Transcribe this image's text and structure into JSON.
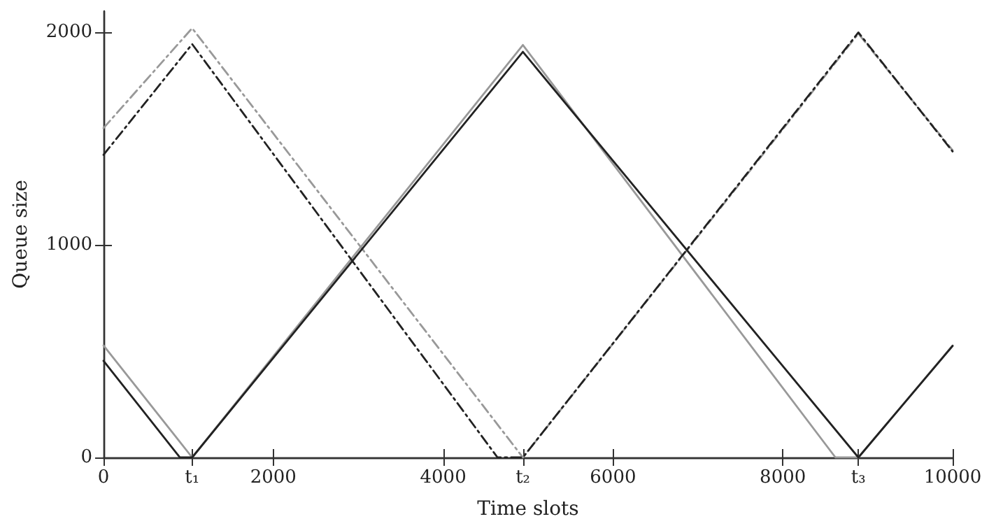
{
  "chart_data": {
    "type": "line",
    "xlabel": "Time slots",
    "ylabel": "Queue size",
    "xlim": [
      0,
      10000
    ],
    "ylim": [
      0,
      2100
    ],
    "xticks": [
      0,
      {
        "value": 1044,
        "label": "t₁"
      },
      2000,
      4000,
      {
        "value": 4939,
        "label": "t₂"
      },
      6000,
      8000,
      {
        "value": 8890,
        "label": "t₃"
      },
      10000
    ],
    "yticks": [
      0,
      1000,
      2000
    ],
    "grid": false,
    "marker": "none",
    "series": [
      {
        "color": "#999999",
        "line_style": "solid",
        "x": [
          0,
          1044,
          4939,
          8620,
          8890,
          10000
        ],
        "values": [
          527,
          0,
          1941,
          0,
          0,
          527
        ]
      },
      {
        "color": "#999999",
        "line_style": "dashdot",
        "x": [
          0,
          1044,
          4939,
          8890,
          10000
        ],
        "values": [
          1550,
          2020,
          0,
          1994,
          1445
        ]
      },
      {
        "color": "#222222",
        "line_style": "dashdot",
        "x": [
          0,
          1044,
          4640,
          4939,
          8890,
          10000
        ],
        "values": [
          1424,
          1945,
          0,
          0,
          2000,
          1440
        ]
      },
      {
        "color": "#222222",
        "line_style": "solid",
        "x": [
          0,
          900,
          1044,
          4939,
          8890,
          10000
        ],
        "values": [
          455,
          0,
          0,
          1909,
          0,
          525
        ]
      }
    ]
  }
}
